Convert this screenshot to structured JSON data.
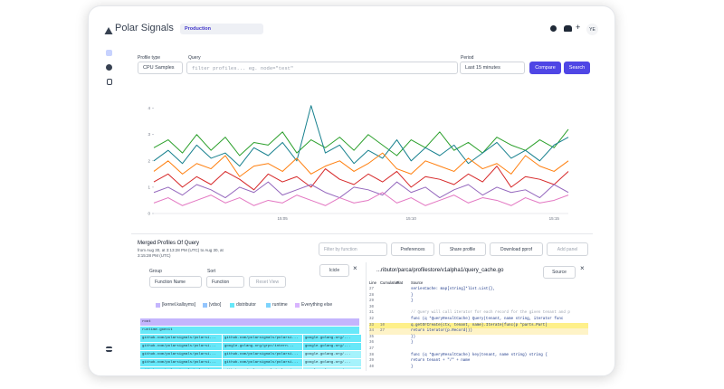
{
  "header": {
    "brand": "Polar Signals",
    "project": "Production",
    "user": "YE"
  },
  "query": {
    "profile_type_label": "Profile type",
    "profile_type": "CPU Samples",
    "query_label": "Query",
    "query_placeholder": "filter profiles... eg. node=\"test\"",
    "period_label": "Period",
    "period": "Last 15 minutes",
    "compare": "Compare",
    "search": "Search"
  },
  "chart_data": {
    "type": "line",
    "categories": [
      null,
      null,
      null,
      null,
      null,
      null,
      null,
      null,
      null,
      "15:05",
      null,
      null,
      null,
      null,
      null,
      null,
      null,
      null,
      "15:10",
      null,
      null,
      null,
      null,
      null,
      null,
      null,
      null,
      null,
      "15:15",
      null
    ],
    "ylim": [
      0,
      4.4
    ],
    "yticks": [
      0,
      1,
      2,
      3,
      4
    ],
    "grid": false,
    "series": [
      {
        "color": "#2ca02c",
        "values": [
          2.5,
          2.8,
          2.3,
          3.0,
          2.4,
          2.9,
          2.2,
          2.7,
          2.6,
          3.1,
          2.3,
          2.8,
          2.5,
          2.9,
          2.4,
          3.0,
          2.6,
          2.2,
          2.8,
          2.5,
          3.1,
          2.4,
          2.7,
          2.3,
          2.9,
          2.6,
          2.4,
          2.8,
          2.5,
          3.2
        ]
      },
      {
        "color": "#17808e",
        "values": [
          2.0,
          2.4,
          1.9,
          2.6,
          2.1,
          2.3,
          1.8,
          2.5,
          2.2,
          2.7,
          2.0,
          4.1,
          2.3,
          2.6,
          1.9,
          2.4,
          2.1,
          2.8,
          2.0,
          2.5,
          2.2,
          2.6,
          1.9,
          2.3,
          2.7,
          2.1,
          2.4,
          2.0,
          2.6,
          2.9
        ]
      },
      {
        "color": "#ff7f0e",
        "values": [
          1.6,
          2.0,
          1.5,
          1.9,
          1.7,
          2.2,
          1.4,
          1.8,
          1.9,
          1.6,
          2.1,
          1.5,
          1.8,
          2.0,
          1.6,
          1.9,
          2.3,
          1.7,
          1.5,
          2.0,
          1.8,
          1.6,
          2.1,
          1.7,
          1.9,
          1.5,
          2.2,
          1.8,
          1.6,
          2.0
        ]
      },
      {
        "color": "#d62728",
        "values": [
          1.2,
          1.5,
          1.0,
          1.4,
          1.1,
          1.6,
          1.3,
          0.9,
          1.5,
          1.2,
          1.4,
          1.0,
          1.7,
          1.3,
          1.1,
          1.5,
          1.2,
          1.6,
          1.0,
          1.4,
          1.3,
          1.1,
          1.5,
          1.2,
          1.8,
          1.0,
          1.4,
          1.3,
          1.1,
          1.6
        ]
      },
      {
        "color": "#9467bd",
        "values": [
          0.8,
          1.0,
          0.7,
          1.1,
          0.9,
          0.6,
          1.0,
          0.8,
          1.2,
          0.7,
          0.9,
          1.1,
          0.8,
          0.6,
          1.0,
          0.9,
          0.7,
          1.2,
          0.8,
          1.0,
          0.6,
          0.9,
          1.1,
          0.7,
          1.0,
          0.8,
          0.9,
          0.6,
          1.1,
          0.8
        ]
      },
      {
        "color": "#e377c2",
        "values": [
          0.4,
          0.6,
          0.3,
          0.5,
          0.7,
          0.4,
          0.6,
          0.3,
          0.5,
          0.4,
          0.7,
          0.5,
          0.3,
          0.6,
          0.4,
          0.5,
          0.8,
          0.4,
          0.6,
          0.3,
          0.5,
          0.7,
          0.4,
          0.6,
          0.5,
          0.3,
          0.6,
          0.4,
          0.5,
          0.7
        ]
      }
    ]
  },
  "profile": {
    "title": "Merged Profiles Of Query",
    "range": "from Aug 30, at 3:13:28 PM (UTC) to Aug 30, at 3:15:28 PM (UTC)",
    "filter_placeholder": "Filter by function",
    "preferences": "Preferences",
    "share": "Share profile",
    "download": "Download pprof",
    "add_panel": "Add panel"
  },
  "icicle": {
    "group_label": "Group",
    "sort_label": "Sort",
    "group": "Function Name",
    "sort": "Function",
    "reset": "Reset View",
    "view": "Icicle",
    "legend": [
      "[kernel.kallsyms]",
      "[vdso]",
      "distributor",
      "runtime",
      "Everything else"
    ],
    "rows": [
      [
        "root"
      ],
      [
        "runtime.goexit"
      ],
      [
        "github.com/polarsignals/polarsi...",
        "github.com/polarsignals/polarsi...",
        "google.golang.org/..."
      ],
      [
        "github.com/polarsignals/polarsi...",
        "google.golang.org/grpc/intern...",
        "google.golang.org/..."
      ],
      [
        "github.com/polarsignals/polarsi...",
        "github.com/polarsignals/polarsi...",
        "google.golang.org/..."
      ],
      [
        "github.com/polarsignals/polarsi...",
        "github.com/polarsignals/polarsi...",
        "google.golang.org/..."
      ],
      [
        "github.com/polarsignals/polarsi...",
        "github.com/polarsignals/polarsi...",
        "google.golang.org/..."
      ]
    ]
  },
  "source": {
    "file": "...ributor/parca/profilestore/v1alpha1/query_cache.go",
    "view": "Source",
    "columns": [
      "Line",
      "Cumulative",
      "Flat",
      "Source"
    ],
    "rows": [
      [
        "27",
        "",
        "",
        "        seriesCache: map[string]*list.List{},"
      ],
      [
        "28",
        "",
        "",
        "    }"
      ],
      [
        "29",
        "",
        "",
        "}"
      ],
      [
        "30",
        "",
        "",
        ""
      ],
      [
        "31",
        "",
        "",
        "// Query will call iterator for each record for the given tenant and p"
      ],
      [
        "32",
        "",
        "",
        "func (q *QueryResultCache) Query(tenant, name string, iterator func"
      ],
      [
        "33",
        "10",
        "",
        "    q.getOrCreate(ctx, tenant, name).Iterate(func(p *parts.Part)"
      ],
      [
        "34",
        "27",
        "",
        "        return iterator(p.Record())"
      ],
      [
        "35",
        "",
        "",
        "    })"
      ],
      [
        "36",
        "",
        "",
        "}"
      ],
      [
        "37",
        "",
        "",
        ""
      ],
      [
        "38",
        "",
        "",
        "func (q *QueryResultCache) key(tenant, name string) string {"
      ],
      [
        "39",
        "",
        "",
        "    return tenant + \"/\" + name"
      ],
      [
        "40",
        "",
        "",
        "}"
      ]
    ]
  }
}
